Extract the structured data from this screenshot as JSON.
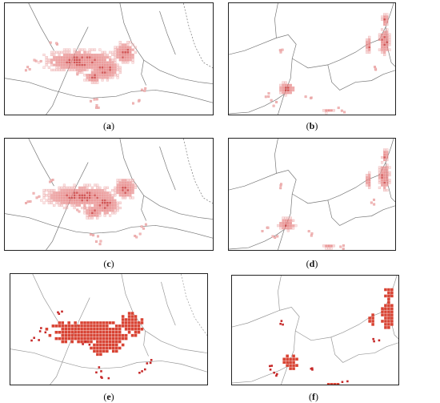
{
  "figure": {
    "captions": [
      {
        "id": "a",
        "text": "a"
      },
      {
        "id": "b",
        "text": "b"
      },
      {
        "id": "c",
        "text": "c"
      },
      {
        "id": "d",
        "text": "d"
      },
      {
        "id": "e",
        "text": "e"
      },
      {
        "id": "f",
        "text": "f"
      }
    ]
  },
  "colors": {
    "border": "#222222",
    "boundary": "#777777",
    "cell_light": "#f2b8b8",
    "cell_mid": "#e57373",
    "cell_dark": "#c62828",
    "cell_solid": "#d84333"
  },
  "panels": [
    {
      "id": "a",
      "style": "light-grid",
      "region": "west"
    },
    {
      "id": "b",
      "style": "light-grid",
      "region": "east"
    },
    {
      "id": "c",
      "style": "light-grid",
      "region": "west"
    },
    {
      "id": "d",
      "style": "light-grid",
      "region": "east"
    },
    {
      "id": "e",
      "style": "solid-fill",
      "region": "west"
    },
    {
      "id": "f",
      "style": "solid-fill",
      "region": "east"
    }
  ]
}
